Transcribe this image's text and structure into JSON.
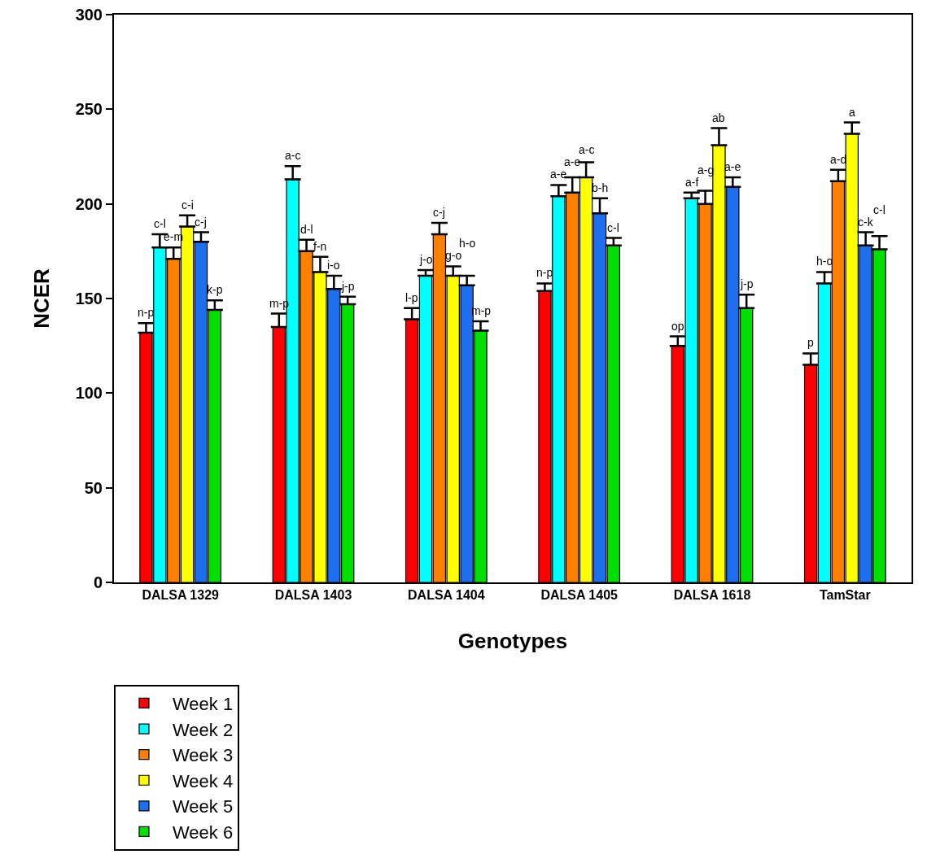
{
  "chart_data": {
    "type": "bar",
    "xlabel": "Genotypes",
    "ylabel": "NCER",
    "categories": [
      "DALSA 1329",
      "DALSA 1403",
      "DALSA 1404",
      "DALSA 1405",
      "DALSA 1618",
      "TamStar"
    ],
    "ylim": [
      0,
      300
    ],
    "yticks": [
      0,
      50,
      100,
      150,
      200,
      250,
      300
    ],
    "grid": false,
    "legend": "bottom left",
    "series": [
      {
        "name": "Week 1",
        "color": "#ff0000",
        "values": [
          132,
          135,
          139,
          154,
          125,
          115
        ],
        "errors": [
          [
            132,
            137
          ],
          [
            135,
            142
          ],
          [
            139,
            145
          ],
          [
            154,
            158
          ],
          [
            125,
            130
          ],
          [
            115,
            121
          ]
        ],
        "value_labels": [
          "n-p",
          "m-p",
          "l-p",
          "n-p",
          "op",
          "p"
        ]
      },
      {
        "name": "Week 2",
        "color": "#00ffff",
        "values": [
          177,
          213,
          162,
          204,
          203,
          158
        ],
        "errors": [
          [
            177,
            184
          ],
          [
            213,
            220
          ],
          [
            162,
            165
          ],
          [
            204,
            210
          ],
          [
            203,
            206
          ],
          [
            158,
            164
          ]
        ],
        "value_labels": [
          "c-l",
          "a-c",
          "j-o",
          "a-e",
          "a-f",
          "h-o"
        ]
      },
      {
        "name": "Week 3",
        "color": "#ff8000",
        "values": [
          171,
          175,
          184,
          206,
          200,
          212
        ],
        "errors": [
          [
            171,
            177
          ],
          [
            175,
            181
          ],
          [
            184,
            190
          ],
          [
            206,
            214
          ],
          [
            200,
            207
          ],
          [
            212,
            218
          ]
        ],
        "value_labels": [
          "e-m",
          "d-l",
          "c-j",
          "a-e",
          "a-g",
          "a-d"
        ]
      },
      {
        "name": "Week 4",
        "color": "#ffff00",
        "values": [
          188,
          164,
          162,
          214,
          231,
          237
        ],
        "errors": [
          [
            188,
            194
          ],
          [
            164,
            172
          ],
          [
            162,
            167
          ],
          [
            214,
            222
          ],
          [
            231,
            240
          ],
          [
            237,
            243
          ]
        ],
        "value_labels": [
          "c-i",
          "f-n",
          "g-o",
          "a-c",
          "ab",
          "a"
        ]
      },
      {
        "name": "Week 5",
        "color": "#1e6ff0",
        "values": [
          180,
          155,
          157,
          195,
          209,
          178
        ],
        "errors": [
          [
            180,
            185
          ],
          [
            155,
            162
          ],
          [
            157,
            162
          ],
          [
            195,
            203
          ],
          [
            209,
            214
          ],
          [
            178,
            185
          ]
        ],
        "value_labels": [
          "c-j",
          "i-o",
          "h-o",
          "b-h",
          "a-e",
          "c-k"
        ]
      },
      {
        "name": "Week 6",
        "color": "#00e000",
        "values": [
          144,
          147,
          133,
          178,
          145,
          176
        ],
        "errors": [
          [
            144,
            149
          ],
          [
            147,
            151
          ],
          [
            133,
            138
          ],
          [
            178,
            182
          ],
          [
            145,
            152
          ],
          [
            176,
            183
          ]
        ],
        "value_labels": [
          "k-p",
          "j-p",
          "m-p",
          "c-l",
          "j-p",
          "c-l"
        ]
      }
    ]
  }
}
